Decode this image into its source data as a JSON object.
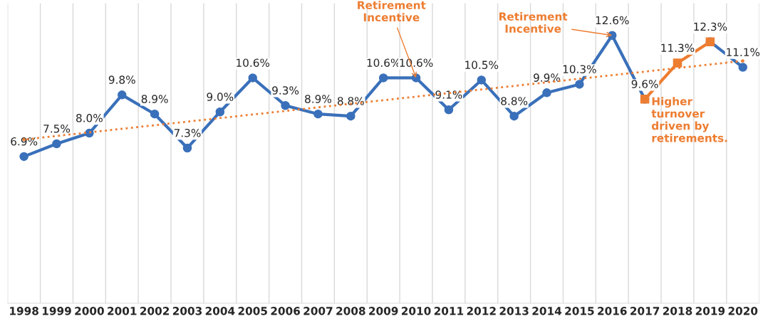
{
  "chart_data": {
    "type": "line",
    "categories": [
      "1998",
      "1999",
      "2000",
      "2001",
      "2002",
      "2003",
      "2004",
      "2005",
      "2006",
      "2007",
      "2008",
      "2009",
      "2010",
      "2011",
      "2012",
      "2013",
      "2014",
      "2015",
      "2016",
      "2017",
      "2018",
      "2019",
      "2020"
    ],
    "series": [
      {
        "color": "#3a70ba",
        "marker": "circle",
        "values": [
          6.9,
          7.5,
          8.0,
          9.8,
          8.9,
          7.3,
          9.0,
          10.6,
          9.3,
          8.9,
          8.8,
          10.6,
          10.6,
          9.1,
          10.5,
          8.8,
          9.9,
          10.3,
          12.6,
          9.6,
          null,
          12.3,
          11.1
        ],
        "value_labels": [
          "6.9%",
          "7.5%",
          "8.0%",
          "9.8%",
          "8.9%",
          "7.3%",
          "9.0%",
          "10.6%",
          "9.3%",
          "8.9%",
          "8.8%",
          "10.6%",
          "10.6%",
          "9.1%",
          "10.5%",
          "8.8%",
          "9.9%",
          "10.3%",
          "12.6%",
          "9.6%",
          null,
          null,
          "11.1%"
        ]
      },
      {
        "color": "#ed7d31",
        "marker": "square",
        "values": [
          null,
          null,
          null,
          null,
          null,
          null,
          null,
          null,
          null,
          null,
          null,
          null,
          null,
          null,
          null,
          null,
          null,
          null,
          null,
          9.6,
          11.3,
          12.3,
          null
        ],
        "value_labels": [
          null,
          null,
          null,
          null,
          null,
          null,
          null,
          null,
          null,
          null,
          null,
          null,
          null,
          null,
          null,
          null,
          null,
          null,
          null,
          null,
          "11.3%",
          "12.3%",
          null
        ]
      },
      {
        "type": "line",
        "color": "#ed7d31",
        "line_style": "dotted",
        "marker": "none",
        "values": [
          7.7,
          null,
          null,
          null,
          null,
          null,
          null,
          null,
          null,
          null,
          null,
          null,
          null,
          null,
          null,
          null,
          null,
          null,
          null,
          null,
          null,
          null,
          11.4
        ]
      }
    ],
    "annotations": [
      {
        "text": "Retirement\nIncentive",
        "x": "2010",
        "y": 10.6
      },
      {
        "text": "Retirement\nIncentive",
        "x": "2016",
        "y": 12.6
      },
      "Higher\nturnover\ndriven by\nretirements."
    ],
    "grid": "x",
    "legend": false,
    "tick_labels": "x"
  }
}
